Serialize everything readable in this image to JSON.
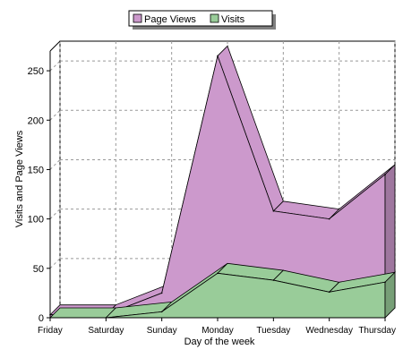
{
  "chart_data": {
    "type": "area",
    "title": "",
    "xlabel": "Day of the week",
    "ylabel": "Visits and Page Views",
    "categories": [
      "Friday",
      "Saturday",
      "Sunday",
      "Monday",
      "Tuesday",
      "Wednesday",
      "Thursday"
    ],
    "ylim": [
      0,
      270
    ],
    "yticks": [
      0,
      50,
      100,
      150,
      200,
      250
    ],
    "grid": true,
    "legend_position": "top-center",
    "stacked": false,
    "three_d": true,
    "series": [
      {
        "name": "Page Views",
        "values": [
          3,
          3,
          25,
          265,
          108,
          100,
          145
        ],
        "color": "#cc99cc"
      },
      {
        "name": "Visits",
        "values": [
          0,
          0,
          6,
          45,
          38,
          26,
          36
        ],
        "color": "#99cc99"
      }
    ]
  }
}
